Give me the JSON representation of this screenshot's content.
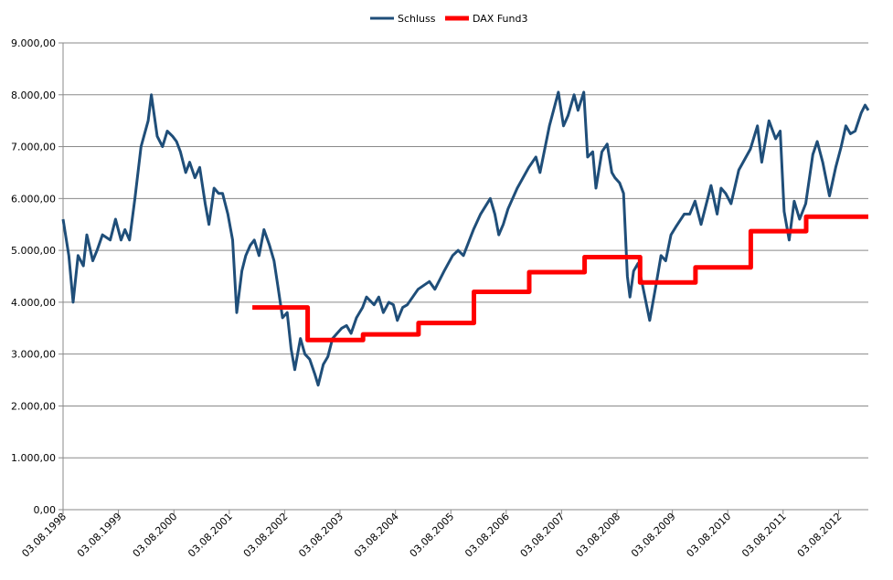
{
  "chart_data": {
    "type": "line",
    "title": "",
    "xlabel": "",
    "ylabel": "",
    "ylim": [
      0,
      9000
    ],
    "xlim": [
      "1998-08-03",
      "2013-02-15"
    ],
    "grid": true,
    "legend_position": "top-center",
    "y_ticks": [
      {
        "value": 0,
        "label": "0,00"
      },
      {
        "value": 1000,
        "label": "1.000,00"
      },
      {
        "value": 2000,
        "label": "2.000,00"
      },
      {
        "value": 3000,
        "label": "3.000,00"
      },
      {
        "value": 4000,
        "label": "4.000,00"
      },
      {
        "value": 5000,
        "label": "5.000,00"
      },
      {
        "value": 6000,
        "label": "6.000,00"
      },
      {
        "value": 7000,
        "label": "7.000,00"
      },
      {
        "value": 8000,
        "label": "8.000,00"
      },
      {
        "value": 9000,
        "label": "9.000,00"
      }
    ],
    "x_ticks": [
      {
        "date": "1998-08-03",
        "label": "03.08.1998"
      },
      {
        "date": "1999-08-03",
        "label": "03.08.1999"
      },
      {
        "date": "2000-08-03",
        "label": "03.08.2000"
      },
      {
        "date": "2001-08-03",
        "label": "03.08.2001"
      },
      {
        "date": "2002-08-03",
        "label": "03.08.2002"
      },
      {
        "date": "2003-08-03",
        "label": "03.08.2003"
      },
      {
        "date": "2004-08-03",
        "label": "03.08.2004"
      },
      {
        "date": "2005-08-03",
        "label": "03.08.2005"
      },
      {
        "date": "2006-08-03",
        "label": "03.08.2006"
      },
      {
        "date": "2007-08-03",
        "label": "03.08.2007"
      },
      {
        "date": "2008-08-03",
        "label": "03.08.2008"
      },
      {
        "date": "2009-08-03",
        "label": "03.08.2009"
      },
      {
        "date": "2010-08-03",
        "label": "03.08.2010"
      },
      {
        "date": "2011-08-03",
        "label": "03.08.2011"
      },
      {
        "date": "2012-08-03",
        "label": "03.08.2012"
      }
    ],
    "series": [
      {
        "name": "Schluss",
        "color": "#1f4e79",
        "points": [
          [
            "1998-08-03",
            5600
          ],
          [
            "1998-09-10",
            4900
          ],
          [
            "1998-10-08",
            4000
          ],
          [
            "1998-11-10",
            4900
          ],
          [
            "1998-12-15",
            4700
          ],
          [
            "1999-01-07",
            5300
          ],
          [
            "1999-02-15",
            4800
          ],
          [
            "1999-03-15",
            5000
          ],
          [
            "1999-04-20",
            5300
          ],
          [
            "1999-06-10",
            5200
          ],
          [
            "1999-07-15",
            5600
          ],
          [
            "1999-08-20",
            5200
          ],
          [
            "1999-09-15",
            5400
          ],
          [
            "1999-10-15",
            5200
          ],
          [
            "1999-11-20",
            6000
          ],
          [
            "1999-12-30",
            7000
          ],
          [
            "2000-02-15",
            7500
          ],
          [
            "2000-03-07",
            8000
          ],
          [
            "2000-04-15",
            7200
          ],
          [
            "2000-05-20",
            7000
          ],
          [
            "2000-06-20",
            7300
          ],
          [
            "2000-07-25",
            7200
          ],
          [
            "2000-08-20",
            7100
          ],
          [
            "2000-09-15",
            6900
          ],
          [
            "2000-10-20",
            6500
          ],
          [
            "2000-11-15",
            6700
          ],
          [
            "2000-12-20",
            6400
          ],
          [
            "2001-01-20",
            6600
          ],
          [
            "2001-02-25",
            5900
          ],
          [
            "2001-03-22",
            5500
          ],
          [
            "2001-04-25",
            6200
          ],
          [
            "2001-05-25",
            6100
          ],
          [
            "2001-06-20",
            6100
          ],
          [
            "2001-07-25",
            5700
          ],
          [
            "2001-08-25",
            5200
          ],
          [
            "2001-09-21",
            3800
          ],
          [
            "2001-10-25",
            4600
          ],
          [
            "2001-11-20",
            4900
          ],
          [
            "2001-12-20",
            5100
          ],
          [
            "2002-01-15",
            5200
          ],
          [
            "2002-02-15",
            4900
          ],
          [
            "2002-03-20",
            5400
          ],
          [
            "2002-04-25",
            5100
          ],
          [
            "2002-05-25",
            4800
          ],
          [
            "2002-06-20",
            4300
          ],
          [
            "2002-07-20",
            3700
          ],
          [
            "2002-08-20",
            3800
          ],
          [
            "2002-09-15",
            3100
          ],
          [
            "2002-10-09",
            2700
          ],
          [
            "2002-11-15",
            3300
          ],
          [
            "2002-12-15",
            3000
          ],
          [
            "2003-01-15",
            2900
          ],
          [
            "2003-02-20",
            2600
          ],
          [
            "2003-03-12",
            2400
          ],
          [
            "2003-04-15",
            2800
          ],
          [
            "2003-05-15",
            2950
          ],
          [
            "2003-06-15",
            3300
          ],
          [
            "2003-07-15",
            3400
          ],
          [
            "2003-08-15",
            3500
          ],
          [
            "2003-09-15",
            3550
          ],
          [
            "2003-10-15",
            3400
          ],
          [
            "2003-11-20",
            3700
          ],
          [
            "2003-12-30",
            3900
          ],
          [
            "2004-01-25",
            4100
          ],
          [
            "2004-03-15",
            3950
          ],
          [
            "2004-04-15",
            4100
          ],
          [
            "2004-05-15",
            3800
          ],
          [
            "2004-06-20",
            4000
          ],
          [
            "2004-07-20",
            3950
          ],
          [
            "2004-08-15",
            3650
          ],
          [
            "2004-09-20",
            3900
          ],
          [
            "2004-10-20",
            3950
          ],
          [
            "2004-12-30",
            4250
          ],
          [
            "2005-03-15",
            4400
          ],
          [
            "2005-04-20",
            4250
          ],
          [
            "2005-06-20",
            4600
          ],
          [
            "2005-08-15",
            4900
          ],
          [
            "2005-09-20",
            5000
          ],
          [
            "2005-10-25",
            4900
          ],
          [
            "2005-12-30",
            5400
          ],
          [
            "2006-02-15",
            5700
          ],
          [
            "2006-04-20",
            6000
          ],
          [
            "2006-05-20",
            5700
          ],
          [
            "2006-06-15",
            5300
          ],
          [
            "2006-07-15",
            5500
          ],
          [
            "2006-08-15",
            5800
          ],
          [
            "2006-10-15",
            6200
          ],
          [
            "2006-12-30",
            6600
          ],
          [
            "2007-02-15",
            6800
          ],
          [
            "2007-03-14",
            6500
          ],
          [
            "2007-05-15",
            7400
          ],
          [
            "2007-07-13",
            8050
          ],
          [
            "2007-08-16",
            7400
          ],
          [
            "2007-09-15",
            7600
          ],
          [
            "2007-10-25",
            8000
          ],
          [
            "2007-11-20",
            7700
          ],
          [
            "2007-12-28",
            8050
          ],
          [
            "2008-01-22",
            6800
          ],
          [
            "2008-02-25",
            6900
          ],
          [
            "2008-03-17",
            6200
          ],
          [
            "2008-04-25",
            6900
          ],
          [
            "2008-05-30",
            7050
          ],
          [
            "2008-06-30",
            6500
          ],
          [
            "2008-07-20",
            6400
          ],
          [
            "2008-08-20",
            6300
          ],
          [
            "2008-09-15",
            6100
          ],
          [
            "2008-10-10",
            4500
          ],
          [
            "2008-10-27",
            4100
          ],
          [
            "2008-11-20",
            4600
          ],
          [
            "2008-12-20",
            4750
          ],
          [
            "2009-01-20",
            4300
          ],
          [
            "2009-03-06",
            3650
          ],
          [
            "2009-04-15",
            4300
          ],
          [
            "2009-05-20",
            4900
          ],
          [
            "2009-06-20",
            4800
          ],
          [
            "2009-07-25",
            5300
          ],
          [
            "2009-08-25",
            5450
          ],
          [
            "2009-10-20",
            5700
          ],
          [
            "2009-11-25",
            5700
          ],
          [
            "2009-12-30",
            5950
          ],
          [
            "2010-02-08",
            5500
          ],
          [
            "2010-04-15",
            6250
          ],
          [
            "2010-05-25",
            5700
          ],
          [
            "2010-06-20",
            6200
          ],
          [
            "2010-07-20",
            6100
          ],
          [
            "2010-08-25",
            5900
          ],
          [
            "2010-10-15",
            6550
          ],
          [
            "2010-12-30",
            6950
          ],
          [
            "2011-02-15",
            7400
          ],
          [
            "2011-03-15",
            6700
          ],
          [
            "2011-05-02",
            7500
          ],
          [
            "2011-06-15",
            7150
          ],
          [
            "2011-07-15",
            7300
          ],
          [
            "2011-08-10",
            5750
          ],
          [
            "2011-09-12",
            5200
          ],
          [
            "2011-10-15",
            5950
          ],
          [
            "2011-11-20",
            5600
          ],
          [
            "2011-12-30",
            5900
          ],
          [
            "2012-02-15",
            6850
          ],
          [
            "2012-03-15",
            7100
          ],
          [
            "2012-04-20",
            6700
          ],
          [
            "2012-06-04",
            6050
          ],
          [
            "2012-07-15",
            6600
          ],
          [
            "2012-08-20",
            7000
          ],
          [
            "2012-09-20",
            7400
          ],
          [
            "2012-10-20",
            7250
          ],
          [
            "2012-11-20",
            7300
          ],
          [
            "2012-12-30",
            7650
          ],
          [
            "2013-01-25",
            7800
          ],
          [
            "2013-02-15",
            7700
          ]
        ]
      },
      {
        "name": "DAX Fund3",
        "color": "#ff0000",
        "points": [
          [
            "2002-01-02",
            3900
          ],
          [
            "2003-01-02",
            3900
          ],
          [
            "2003-01-02",
            3270
          ],
          [
            "2004-01-02",
            3270
          ],
          [
            "2004-01-02",
            3380
          ],
          [
            "2005-01-02",
            3380
          ],
          [
            "2005-01-02",
            3600
          ],
          [
            "2006-01-02",
            3600
          ],
          [
            "2006-01-02",
            4200
          ],
          [
            "2007-01-02",
            4200
          ],
          [
            "2007-01-02",
            4580
          ],
          [
            "2008-01-02",
            4580
          ],
          [
            "2008-01-02",
            4870
          ],
          [
            "2009-01-02",
            4870
          ],
          [
            "2009-01-02",
            4380
          ],
          [
            "2010-01-02",
            4380
          ],
          [
            "2010-01-02",
            4670
          ],
          [
            "2011-01-02",
            4670
          ],
          [
            "2011-01-02",
            5370
          ],
          [
            "2012-01-02",
            5370
          ],
          [
            "2012-01-02",
            5650
          ],
          [
            "2013-02-15",
            5650
          ]
        ]
      }
    ]
  }
}
